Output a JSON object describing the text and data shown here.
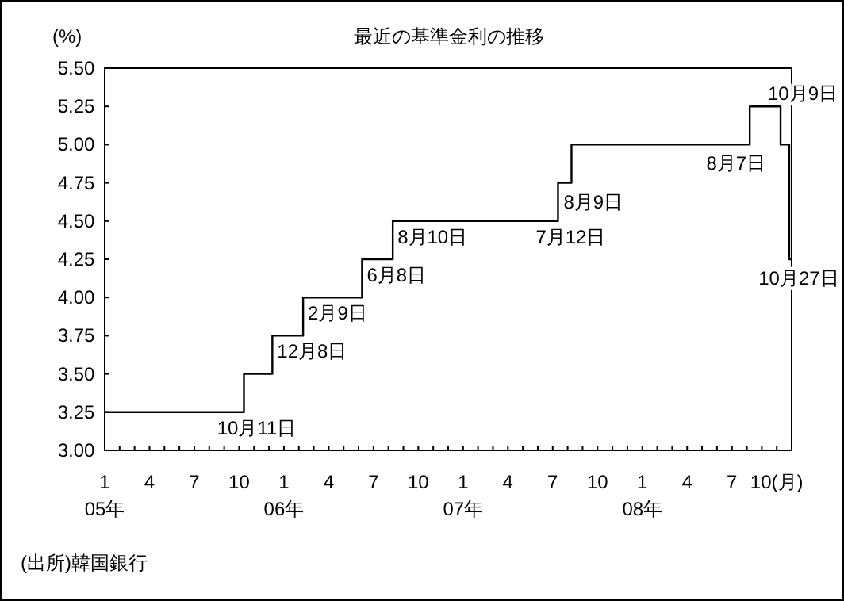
{
  "chart_data": {
    "type": "step",
    "title": "最近の基準金利の推移",
    "ylabel": "(%)",
    "series": [
      {
        "color": "#000000",
        "x": [
          "2005-01",
          "2005-10-11",
          "2005-12-08",
          "2006-02-09",
          "2006-06-08",
          "2006-08-10",
          "2007-07-12",
          "2007-08-09",
          "2008-08-07",
          "2008-10-09",
          "2008-10-27",
          "2008-11"
        ],
        "values": [
          3.25,
          3.5,
          3.75,
          4.0,
          4.25,
          4.5,
          4.75,
          5.0,
          5.25,
          5.0,
          4.25,
          4.25
        ]
      }
    ],
    "xlim": [
      "2005-01",
      "2008-11"
    ],
    "xticks": [
      {
        "value": "2005-01",
        "label": "1\n05年"
      },
      {
        "value": "2005-02",
        "label": null
      },
      {
        "value": "2005-03",
        "label": null
      },
      {
        "value": "2005-04",
        "label": "4"
      },
      {
        "value": "2005-05",
        "label": null
      },
      {
        "value": "2005-06",
        "label": null
      },
      {
        "value": "2005-07",
        "label": "7"
      },
      {
        "value": "2005-08",
        "label": null
      },
      {
        "value": "2005-09",
        "label": null
      },
      {
        "value": "2005-10",
        "label": "10"
      },
      {
        "value": "2005-11",
        "label": null
      },
      {
        "value": "2005-12",
        "label": null
      },
      {
        "value": "2006-01",
        "label": "1\n06年"
      },
      {
        "value": "2006-02",
        "label": null
      },
      {
        "value": "2006-03",
        "label": null
      },
      {
        "value": "2006-04",
        "label": "4"
      },
      {
        "value": "2006-05",
        "label": null
      },
      {
        "value": "2006-06",
        "label": null
      },
      {
        "value": "2006-07",
        "label": "7"
      },
      {
        "value": "2006-08",
        "label": null
      },
      {
        "value": "2006-09",
        "label": null
      },
      {
        "value": "2006-10",
        "label": "10"
      },
      {
        "value": "2006-11",
        "label": null
      },
      {
        "value": "2006-12",
        "label": null
      },
      {
        "value": "2007-01",
        "label": "1\n07年"
      },
      {
        "value": "2007-02",
        "label": null
      },
      {
        "value": "2007-03",
        "label": null
      },
      {
        "value": "2007-04",
        "label": "4"
      },
      {
        "value": "2007-05",
        "label": null
      },
      {
        "value": "2007-06",
        "label": null
      },
      {
        "value": "2007-07",
        "label": "7"
      },
      {
        "value": "2007-08",
        "label": null
      },
      {
        "value": "2007-09",
        "label": null
      },
      {
        "value": "2007-10",
        "label": "10"
      },
      {
        "value": "2007-11",
        "label": null
      },
      {
        "value": "2007-12",
        "label": null
      },
      {
        "value": "2008-01",
        "label": "1\n08年"
      },
      {
        "value": "2008-02",
        "label": null
      },
      {
        "value": "2008-03",
        "label": null
      },
      {
        "value": "2008-04",
        "label": "4"
      },
      {
        "value": "2008-05",
        "label": null
      },
      {
        "value": "2008-06",
        "label": null
      },
      {
        "value": "2008-07",
        "label": "7"
      },
      {
        "value": "2008-08",
        "label": null
      },
      {
        "value": "2008-09",
        "label": null
      },
      {
        "value": "2008-10",
        "label": "10(月)"
      }
    ],
    "ylim": [
      3.0,
      5.5
    ],
    "yticks": [
      {
        "value": 3.0,
        "label": "3.00"
      },
      {
        "value": 3.25,
        "label": "3.25"
      },
      {
        "value": 3.5,
        "label": "3.50"
      },
      {
        "value": 3.75,
        "label": "3.75"
      },
      {
        "value": 4.0,
        "label": "4.00"
      },
      {
        "value": 4.25,
        "label": "4.25"
      },
      {
        "value": 4.5,
        "label": "4.50"
      },
      {
        "value": 4.75,
        "label": "4.75"
      },
      {
        "value": 5.0,
        "label": "5.00"
      },
      {
        "value": 5.25,
        "label": "5.25"
      },
      {
        "value": 5.5,
        "label": "5.50"
      }
    ],
    "annotations": [
      {
        "text": "10月11日",
        "x": "2005-10-11",
        "y": 3.5
      },
      {
        "text": "12月8日",
        "x": "2005-12-08",
        "y": 3.75
      },
      {
        "text": "2月9日",
        "x": "2006-02-09",
        "y": 4.0
      },
      {
        "text": "6月8日",
        "x": "2006-06-08",
        "y": 4.25
      },
      {
        "text": "8月10日",
        "x": "2006-08-10",
        "y": 4.5
      },
      {
        "text": "7月12日",
        "x": "2007-07-12",
        "y": 4.75
      },
      {
        "text": "8月9日",
        "x": "2007-08-09",
        "y": 5.0
      },
      {
        "text": "8月7日",
        "x": "2008-08-07",
        "y": 5.25
      },
      {
        "text": "10月9日",
        "x": "2008-10-09",
        "y": 5.0
      },
      {
        "text": "10月27日",
        "x": "2008-10-27",
        "y": 4.25
      },
      "(出所)韓国銀行"
    ],
    "grid": false
  }
}
